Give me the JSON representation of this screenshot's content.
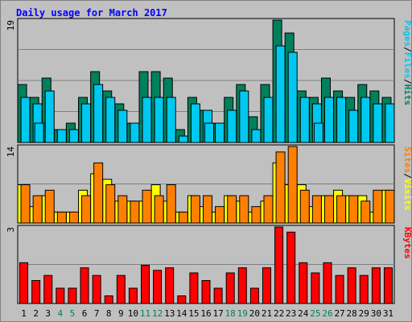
{
  "chart_data": {
    "type": "bar",
    "title": "Daily usage for March 2017",
    "x": [
      "1",
      "2",
      "3",
      "4",
      "5",
      "6",
      "7",
      "8",
      "9",
      "10",
      "11",
      "12",
      "13",
      "14",
      "15",
      "16",
      "17",
      "18",
      "19",
      "20",
      "21",
      "22",
      "23",
      "24",
      "25",
      "26",
      "27",
      "28",
      "29",
      "30",
      "31"
    ],
    "weekend_days": [
      "4",
      "5",
      "11",
      "12",
      "18",
      "19",
      "25",
      "26"
    ],
    "panels": [
      {
        "name": "top",
        "ymax_label": "19",
        "ymax": 19,
        "axis_words": [
          "Pages",
          "/",
          "Files",
          "/",
          "Hits"
        ],
        "series": [
          {
            "name": "Hits",
            "color": "#00805c",
            "values": [
              9,
              7,
              10,
              2,
              3,
              7,
              11,
              8,
              6,
              3,
              11,
              11,
              10,
              2,
              7,
              5,
              3,
              7,
              9,
              4,
              9,
              19,
              17,
              8,
              7,
              10,
              8,
              7,
              9,
              8,
              7
            ]
          },
          {
            "name": "Files",
            "color": "#00c8f0",
            "values": [
              7,
              6,
              8,
              2,
              2,
              6,
              9,
              7,
              5,
              3,
              7,
              7,
              7,
              1,
              6,
              5,
              3,
              5,
              8,
              2,
              7,
              15,
              14,
              7,
              6,
              7,
              7,
              5,
              7,
              6,
              6
            ]
          },
          {
            "name": "Pages",
            "color": "#00c8f0",
            "values": [
              0,
              3,
              0,
              0,
              0,
              0,
              0,
              0,
              0,
              0,
              0,
              0,
              0,
              0,
              0,
              3,
              0,
              0,
              0,
              0,
              0,
              0,
              0,
              0,
              3,
              0,
              0,
              0,
              0,
              0,
              0
            ]
          }
        ]
      },
      {
        "name": "middle",
        "ymax_label": "14",
        "ymax": 14,
        "axis_words": [
          "Sites",
          "/",
          "Visits"
        ],
        "series": [
          {
            "name": "Visits",
            "color": "#ffff00",
            "values": [
              7,
              3,
              5,
              2,
              2,
              6,
              9,
              8,
              4,
              4,
              4,
              7,
              4,
              2,
              5,
              3,
              2,
              5,
              4,
              2,
              4,
              11,
              7,
              7,
              3,
              5,
              6,
              5,
              5,
              2,
              6
            ]
          },
          {
            "name": "Sites",
            "color": "#ff8000",
            "values": [
              7,
              5,
              6,
              2,
              2,
              5,
              11,
              7,
              5,
              4,
              6,
              5,
              7,
              2,
              5,
              5,
              3,
              5,
              5,
              3,
              5,
              13,
              14,
              6,
              5,
              5,
              5,
              5,
              4,
              6,
              6
            ]
          }
        ]
      },
      {
        "name": "bottom",
        "ymax_label": "3",
        "ymax": 3,
        "axis_words": [
          "KBytes"
        ],
        "series": [
          {
            "name": "KBytes",
            "color": "#ff0000",
            "values": [
              1.6,
              0.9,
              1.1,
              0.6,
              0.6,
              1.4,
              1.1,
              0.3,
              1.1,
              0.6,
              1.5,
              1.3,
              1.4,
              0.3,
              1.2,
              0.9,
              0.6,
              1.2,
              1.4,
              0.6,
              1.4,
              3.0,
              2.8,
              1.6,
              1.2,
              1.6,
              1.1,
              1.4,
              1.1,
              1.4,
              1.4
            ]
          }
        ]
      }
    ],
    "colors": {
      "background": "#c0c0c0",
      "title": "#0000ff",
      "pages": "#00c8f0",
      "files": "#00c8f0",
      "hits": "#00805c",
      "sites": "#ff8000",
      "visits": "#ffff00",
      "kbytes": "#ff0000",
      "weekday_label": "#000000",
      "weekend_label": "#00805c",
      "gridline": "#808080"
    }
  }
}
